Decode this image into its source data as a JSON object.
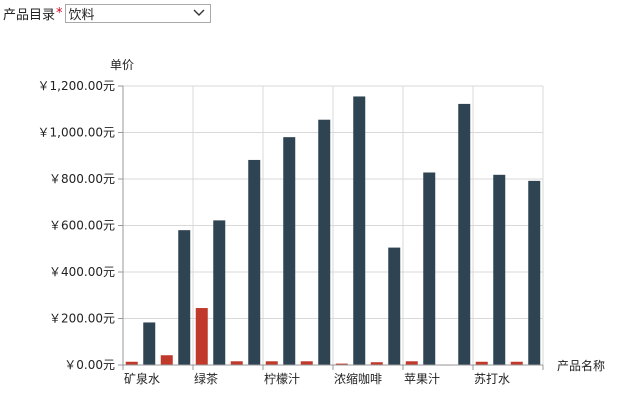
{
  "filter": {
    "label": "产品目录",
    "required_mark": "*",
    "selected": "饮料"
  },
  "colors": {
    "series_a": "#c0392b",
    "series_b": "#2e4453",
    "grid": "#d9d9d9",
    "axis": "#999999"
  },
  "chart_data": {
    "type": "bar",
    "ylabel": "单价",
    "xlabel": "产品名称",
    "ylim": [
      0,
      1200
    ],
    "yticks": [
      "￥0.00元",
      "￥200.00元",
      "￥400.00元",
      "￥600.00元",
      "￥800.00元",
      "￥1,000.00元",
      "￥1,200.00元"
    ],
    "categories": [
      "矿泉水",
      "绿茶",
      "柠檬汁",
      "浓缩咖啡",
      "苹果汁",
      "苏打水"
    ],
    "bars": [
      {
        "series": 0,
        "value": 14
      },
      {
        "series": 1,
        "value": 183
      },
      {
        "series": 0,
        "value": 42
      },
      {
        "series": 1,
        "value": 580
      },
      {
        "series": 0,
        "value": 245
      },
      {
        "series": 1,
        "value": 622
      },
      {
        "series": 0,
        "value": 16
      },
      {
        "series": 1,
        "value": 882
      },
      {
        "series": 0,
        "value": 16
      },
      {
        "series": 1,
        "value": 980
      },
      {
        "series": 0,
        "value": 16
      },
      {
        "series": 1,
        "value": 1055
      },
      {
        "series": 0,
        "value": 6
      },
      {
        "series": 1,
        "value": 1155
      },
      {
        "series": 0,
        "value": 12
      },
      {
        "series": 1,
        "value": 505
      },
      {
        "series": 0,
        "value": 16
      },
      {
        "series": 1,
        "value": 828
      },
      {
        "series": 0,
        "value": 2
      },
      {
        "series": 1,
        "value": 1123
      },
      {
        "series": 0,
        "value": 14
      },
      {
        "series": 1,
        "value": 818
      },
      {
        "series": 0,
        "value": 14
      },
      {
        "series": 1,
        "value": 792
      }
    ]
  }
}
